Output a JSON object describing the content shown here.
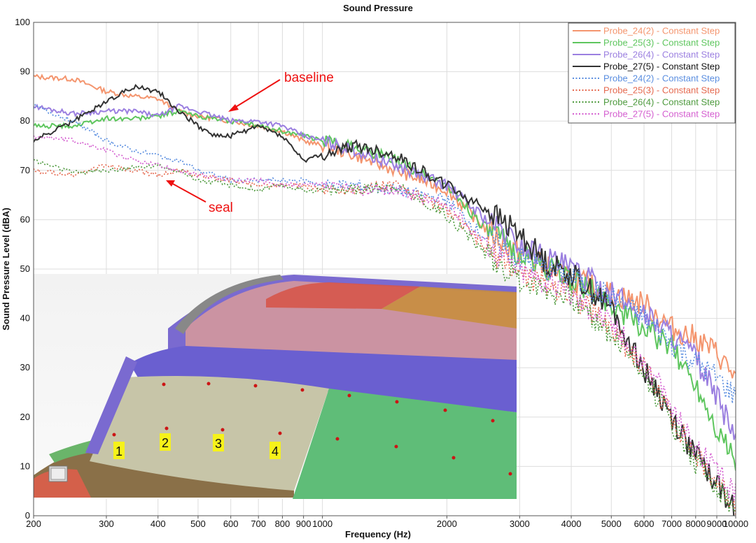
{
  "chart_data": {
    "type": "line",
    "title": "Sound Pressure",
    "xlabel": "Frequency (Hz)",
    "ylabel": "Sound Pressure Level (dBA)",
    "xscale": "log",
    "xlim": [
      200,
      10000
    ],
    "ylim": [
      0,
      100
    ],
    "xticks": [
      200,
      300,
      400,
      500,
      600,
      700,
      800,
      900,
      1000,
      2000,
      3000,
      4000,
      5000,
      6000,
      7000,
      8000,
      9000,
      10000
    ],
    "xtick_labels": [
      "200",
      "300",
      "400",
      "500",
      "600",
      "700",
      "800",
      "900",
      "1000",
      "2000",
      "3000",
      "4000",
      "5000",
      "6000",
      "7000",
      "8000",
      "9000",
      "10000"
    ],
    "yticks": [
      0,
      10,
      20,
      30,
      40,
      50,
      60,
      70,
      80,
      90,
      100
    ],
    "ytick_labels": [
      "0",
      "10",
      "20",
      "30",
      "40",
      "50",
      "60",
      "70",
      "80",
      "90",
      "100"
    ],
    "grid": true,
    "legend_position": "top-right",
    "series": [
      {
        "name": "Probe_24(2) - Constant Step",
        "color": "#f4956e",
        "style": "solid",
        "x": [
          200,
          250,
          300,
          350,
          400,
          450,
          500,
          600,
          700,
          800,
          900,
          1000,
          1200,
          1500,
          2000,
          2500,
          3000,
          4000,
          5000,
          6000,
          7000,
          8000,
          9000,
          10000
        ],
        "y": [
          89,
          88.5,
          86,
          85,
          84.5,
          82,
          81,
          80,
          79,
          78,
          76,
          75,
          73,
          70,
          66,
          58,
          53,
          48,
          45,
          43,
          38,
          36,
          33,
          28
        ]
      },
      {
        "name": "Probe_25(3) - Constant Step",
        "color": "#5ec65e",
        "style": "solid",
        "x": [
          200,
          250,
          300,
          350,
          400,
          450,
          500,
          600,
          700,
          800,
          900,
          1000,
          1200,
          1500,
          2000,
          2500,
          3000,
          4000,
          5000,
          6000,
          7000,
          8000,
          9000,
          10000
        ],
        "y": [
          79,
          79,
          80.5,
          80.5,
          81,
          82,
          81,
          80,
          79,
          78,
          77,
          76,
          75,
          72,
          67,
          58,
          53,
          48,
          43,
          38,
          34,
          27,
          18,
          11
        ]
      },
      {
        "name": "Probe_26(4) - Constant Step",
        "color": "#9b7fe0",
        "style": "solid",
        "x": [
          200,
          250,
          300,
          350,
          400,
          450,
          500,
          600,
          700,
          800,
          900,
          1000,
          1200,
          1500,
          2000,
          2500,
          3000,
          4000,
          5000,
          6000,
          7000,
          8000,
          9000,
          10000
        ],
        "y": [
          83,
          81.5,
          82,
          82,
          81,
          83,
          82,
          80,
          80,
          79,
          77,
          76,
          74,
          71,
          67,
          60,
          55,
          50,
          45,
          41,
          37,
          32,
          24,
          16
        ]
      },
      {
        "name": "Probe_27(5) - Constant Step",
        "color": "#333333",
        "style": "solid",
        "x": [
          200,
          250,
          300,
          350,
          400,
          450,
          500,
          550,
          600,
          700,
          800,
          900,
          1000,
          1200,
          1500,
          2000,
          2500,
          3000,
          3500,
          4000,
          5000,
          6000,
          7000,
          8000,
          9000,
          10000
        ],
        "y": [
          76,
          80,
          84,
          87,
          86,
          82,
          79,
          77,
          77,
          79,
          77,
          72,
          73,
          75,
          73,
          67,
          62,
          57,
          51,
          49,
          42,
          30,
          20,
          12,
          7,
          1
        ]
      },
      {
        "name": "Probe_24(2) - Constant Step",
        "color": "#5a8ee0",
        "style": "dotted",
        "x": [
          200,
          250,
          300,
          350,
          400,
          450,
          500,
          600,
          700,
          800,
          900,
          1000,
          1200,
          1500,
          2000,
          2500,
          3000,
          4000,
          5000,
          6000,
          7000,
          8000,
          9000,
          10000
        ],
        "y": [
          83,
          80,
          76,
          74,
          73,
          72,
          70,
          68,
          68,
          68,
          68,
          67,
          67,
          66,
          64,
          56,
          52,
          48,
          44,
          40,
          35,
          31,
          28,
          24
        ]
      },
      {
        "name": "Probe_25(3) - Constant Step",
        "color": "#e56a50",
        "style": "dotted",
        "x": [
          200,
          250,
          300,
          350,
          400,
          450,
          500,
          600,
          700,
          800,
          900,
          1000,
          1200,
          1500,
          2000,
          2500,
          3000,
          4000,
          5000,
          6000,
          7000,
          8000,
          9000,
          10000
        ],
        "y": [
          70,
          69,
          71,
          70,
          69,
          70,
          69,
          68,
          67,
          67,
          67,
          66,
          66,
          67,
          62,
          54,
          49,
          45,
          38,
          30,
          20,
          12,
          7,
          2
        ]
      },
      {
        "name": "Probe_26(4) - Constant Step",
        "color": "#4e9a3e",
        "style": "dotted",
        "x": [
          200,
          250,
          300,
          350,
          400,
          450,
          500,
          600,
          700,
          800,
          900,
          1000,
          1200,
          1500,
          2000,
          2500,
          3000,
          4000,
          5000,
          6000,
          7000,
          8000,
          9000,
          10000
        ],
        "y": [
          72,
          69.5,
          70,
          70.5,
          71,
          70,
          68,
          67,
          66,
          67,
          66,
          66,
          66,
          67,
          61,
          53,
          48,
          44,
          37,
          29,
          19,
          11,
          6,
          1
        ]
      },
      {
        "name": "Probe_27(5) - Constant Step",
        "color": "#d45fd0",
        "style": "dotted",
        "x": [
          200,
          250,
          300,
          350,
          400,
          450,
          500,
          600,
          700,
          800,
          900,
          1000,
          1200,
          1500,
          2000,
          2500,
          3000,
          4000,
          5000,
          6000,
          7000,
          8000,
          9000,
          10000
        ],
        "y": [
          77,
          76,
          74,
          72,
          71,
          70,
          69,
          68,
          68,
          67,
          67,
          67,
          66,
          66,
          63,
          55,
          50,
          45,
          39,
          31,
          22,
          14,
          9,
          4
        ]
      }
    ],
    "annotations": [
      {
        "text": "baseline",
        "color": "#ee1111"
      },
      {
        "text": "seal",
        "color": "#ee1111"
      }
    ],
    "inset_labels": [
      "1",
      "2",
      "3",
      "4"
    ]
  }
}
